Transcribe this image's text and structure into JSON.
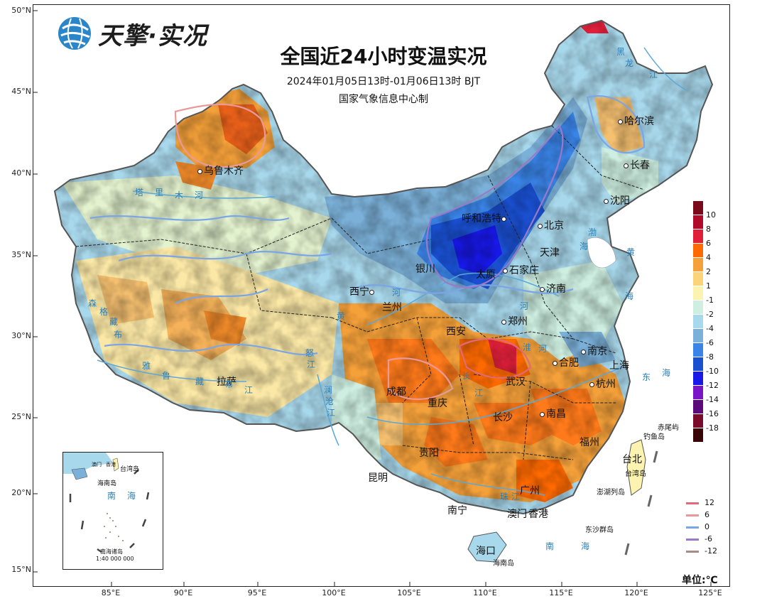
{
  "logo": {
    "text": "天擎·实况"
  },
  "title": "全国近24小时变温实况",
  "subtitle": "2024年01月05日13时-01月06日13时  BJT",
  "producer": "国家气象信息中心制",
  "axes": {
    "lat_labels": [
      "50°N",
      "45°N",
      "40°N",
      "35°N",
      "30°N",
      "25°N",
      "20°N",
      "15°N"
    ],
    "lon_labels": [
      "85°E",
      "90°E",
      "95°E",
      "100°E",
      "105°E",
      "110°E",
      "115°E",
      "120°E",
      "125°E"
    ]
  },
  "cities": [
    {
      "name": "乌鲁木齐"
    },
    {
      "name": "哈尔滨"
    },
    {
      "name": "长春"
    },
    {
      "name": "沈阳"
    },
    {
      "name": "呼和浩特"
    },
    {
      "name": "北京"
    },
    {
      "name": "天津"
    },
    {
      "name": "银川"
    },
    {
      "name": "太原"
    },
    {
      "name": "石家庄"
    },
    {
      "name": "济南"
    },
    {
      "name": "西宁"
    },
    {
      "name": "兰州"
    },
    {
      "name": "郑州"
    },
    {
      "name": "西安"
    },
    {
      "name": "南京"
    },
    {
      "name": "合肥"
    },
    {
      "name": "上海"
    },
    {
      "name": "武汉"
    },
    {
      "name": "杭州"
    },
    {
      "name": "成都"
    },
    {
      "name": "拉萨"
    },
    {
      "name": "重庆"
    },
    {
      "name": "长沙"
    },
    {
      "name": "南昌"
    },
    {
      "name": "福州"
    },
    {
      "name": "贵阳"
    },
    {
      "name": "台北"
    },
    {
      "name": "昆明"
    },
    {
      "name": "广州"
    },
    {
      "name": "南宁"
    },
    {
      "name": "澳门"
    },
    {
      "name": "香港"
    },
    {
      "name": "海口"
    }
  ],
  "geo_labels": [
    "塔",
    "里",
    "木",
    "河",
    "雅",
    "鲁",
    "藏",
    "布",
    "江",
    "森",
    "格",
    "藏",
    "布",
    "黄",
    "河",
    "渤",
    "海",
    "黄",
    "海",
    "东",
    "海",
    "南",
    "海",
    "淮",
    "河",
    "长",
    "江",
    "澜",
    "沧",
    "江",
    "怒",
    "江",
    "珠",
    "江",
    "河",
    "黑",
    "龙",
    "江"
  ],
  "islands": [
    "赤尾屿",
    "钓鱼岛",
    "台湾岛",
    "澎湖列岛",
    "东沙群岛",
    "海南岛"
  ],
  "inset": {
    "labels": [
      "台湾岛",
      "海南岛",
      "南",
      "海",
      "南海诸岛",
      "1:40 000 000",
      "香港",
      "澳门"
    ]
  },
  "colorbar": {
    "labels": [
      "10",
      "8",
      "6",
      "4",
      "2",
      "1",
      "-1",
      "-2",
      "-4",
      "-6",
      "-8",
      "-10",
      "-12",
      "-14",
      "-16",
      "-18"
    ],
    "colors": [
      "#7a0a1a",
      "#b00a2a",
      "#e0203a",
      "#ff6a00",
      "#f5a13a",
      "#fbd47a",
      "#fdf3b0",
      "#cdeee0",
      "#a8d8ec",
      "#7bb0d8",
      "#3a84e8",
      "#1a4fd0",
      "#1818e8",
      "#7a14c8",
      "#5a0a7a",
      "#7a0a2a",
      "#3a0505"
    ]
  },
  "isolines": {
    "labels": [
      "12",
      "6",
      "0",
      "-6",
      "-12"
    ],
    "colors": [
      "#e06a7a",
      "#e89a9a",
      "#7aa6e6",
      "#9a7ac8",
      "#a88a86"
    ]
  },
  "unit": "单位:℃"
}
